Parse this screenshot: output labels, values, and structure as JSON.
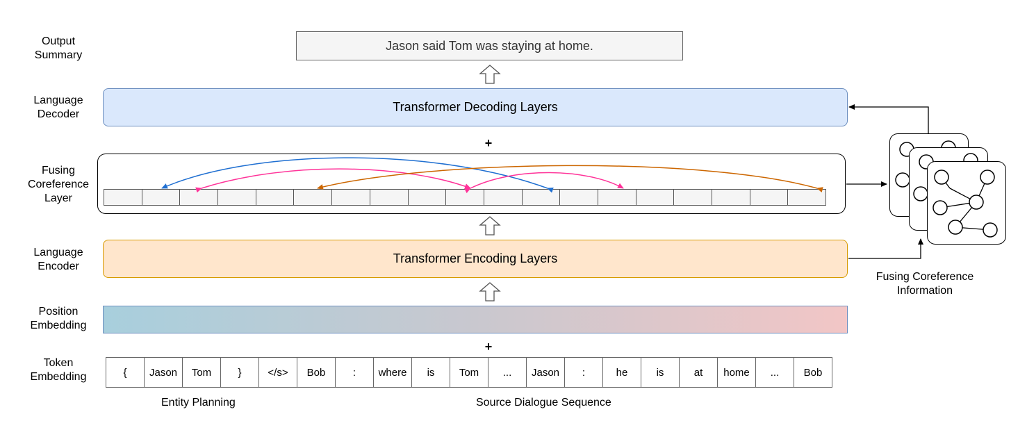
{
  "labels": {
    "output_summary": "Output\nSummary",
    "language_decoder": "Language\nDecoder",
    "fusing_coreference_layer": "Fusing\nCoreference\nLayer",
    "language_encoder": "Language\nEncoder",
    "position_embedding": "Position\nEmbedding",
    "token_embedding": "Token\nEmbedding"
  },
  "output_text": "Jason said Tom was staying at home.",
  "decoder_text": "Transformer Decoding Layers",
  "encoder_text": "Transformer Encoding Layers",
  "plus_symbol": "+",
  "fusing_info_label": "Fusing Coreference\nInformation",
  "tokens": [
    "{",
    "Jason",
    "Tom",
    "}",
    "</s>",
    "Bob",
    ":",
    "where",
    "is",
    "Tom",
    "...",
    "Jason",
    ":",
    "he",
    "is",
    "at",
    "home",
    "...",
    "Bob"
  ],
  "captions": {
    "entity_planning": "Entity Planning",
    "source_dialogue": "Source Dialogue Sequence"
  },
  "colors": {
    "blue_arc": "#1f6fd1",
    "pink_arc": "#ff3399",
    "orange_arc": "#cc6600"
  },
  "icons": {
    "up_arrow": "hollow-up-arrow-icon",
    "graph": "coreference-graph-icon"
  }
}
